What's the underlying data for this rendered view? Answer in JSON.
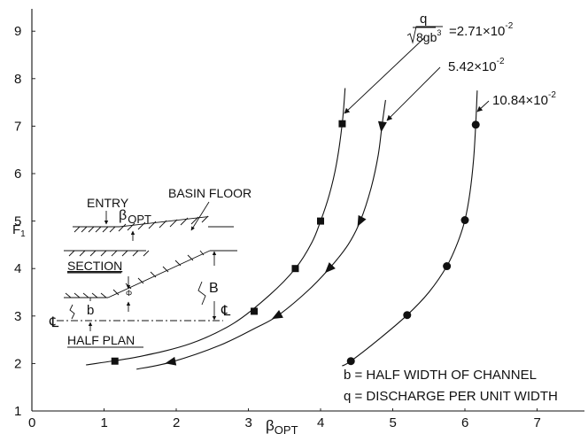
{
  "chart_data": {
    "type": "line",
    "title": "",
    "xlabel_main": "β",
    "xlabel_sub": "OPT",
    "ylabel_main": "F",
    "ylabel_sub": "1",
    "xlim": [
      0,
      7.6
    ],
    "ylim": [
      1,
      9.6
    ],
    "xticks": [
      0,
      1,
      2,
      3,
      4,
      5,
      6,
      7
    ],
    "yticks": [
      1,
      2,
      3,
      4,
      5,
      6,
      7,
      8,
      9
    ],
    "grid": false,
    "series": [
      {
        "name": "2.71×10⁻²",
        "marker": "square",
        "points": [
          {
            "x": 1.15,
            "y": 2.05
          },
          {
            "x": 3.08,
            "y": 3.1
          },
          {
            "x": 3.65,
            "y": 4.0
          },
          {
            "x": 4.0,
            "y": 5.0
          },
          {
            "x": 4.3,
            "y": 7.05
          }
        ],
        "curve": [
          [
            0.75,
            1.97
          ],
          [
            1.5,
            2.15
          ],
          [
            2.2,
            2.42
          ],
          [
            2.8,
            2.85
          ],
          [
            3.3,
            3.45
          ],
          [
            3.65,
            4.0
          ],
          [
            3.88,
            4.55
          ],
          [
            4.0,
            5.0
          ],
          [
            4.12,
            5.55
          ],
          [
            4.22,
            6.2
          ],
          [
            4.3,
            7.05
          ],
          [
            4.34,
            7.8
          ]
        ]
      },
      {
        "name": "5.42×10⁻²",
        "marker": "triangle",
        "points": [
          {
            "x": 1.93,
            "y": 2.03
          },
          {
            "x": 3.4,
            "y": 3.0
          },
          {
            "x": 4.12,
            "y": 4.0
          },
          {
            "x": 4.55,
            "y": 5.0
          },
          {
            "x": 4.85,
            "y": 7.0
          }
        ],
        "curve": [
          [
            1.45,
            1.88
          ],
          [
            1.93,
            2.03
          ],
          [
            2.6,
            2.38
          ],
          [
            3.1,
            2.75
          ],
          [
            3.4,
            3.0
          ],
          [
            3.8,
            3.5
          ],
          [
            4.12,
            4.0
          ],
          [
            4.38,
            4.5
          ],
          [
            4.55,
            5.0
          ],
          [
            4.7,
            5.7
          ],
          [
            4.8,
            6.4
          ],
          [
            4.85,
            7.0
          ],
          [
            4.9,
            7.55
          ]
        ]
      },
      {
        "name": "10.84×10⁻²",
        "marker": "circle",
        "points": [
          {
            "x": 4.42,
            "y": 2.05
          },
          {
            "x": 5.2,
            "y": 3.02
          },
          {
            "x": 5.75,
            "y": 4.05
          },
          {
            "x": 6.0,
            "y": 5.02
          },
          {
            "x": 6.15,
            "y": 7.03
          }
        ],
        "curve": [
          [
            4.3,
            1.95
          ],
          [
            4.42,
            2.05
          ],
          [
            4.8,
            2.5
          ],
          [
            5.2,
            3.02
          ],
          [
            5.5,
            3.5
          ],
          [
            5.75,
            4.05
          ],
          [
            5.9,
            4.55
          ],
          [
            6.0,
            5.02
          ],
          [
            6.07,
            5.6
          ],
          [
            6.12,
            6.3
          ],
          [
            6.15,
            7.03
          ],
          [
            6.17,
            7.75
          ]
        ]
      }
    ],
    "annotations": {
      "formula_top": "q",
      "formula_bottom": "8gb",
      "formula_exponent": "3",
      "formula_value": "=2.71×10",
      "formula_value_exp": "-2",
      "label_2": "5.42×10",
      "label_2_exp": "-2",
      "label_3": "10.84×10",
      "label_3_exp": "-2"
    },
    "legend_notes": [
      "b = HALF WIDTH OF CHANNEL",
      "q = DISCHARGE PER UNIT WIDTH"
    ],
    "inset": {
      "entry": "ENTRY",
      "beta_main": "β",
      "beta_sub": "OPT",
      "basin_floor": "BASIN FLOOR",
      "section": "SECTION",
      "phi": "Φ",
      "b_label": "b",
      "B_label": "B",
      "centerline_1": "℄",
      "centerline_2": "℄",
      "half_plan": "HALF PLAN"
    }
  }
}
